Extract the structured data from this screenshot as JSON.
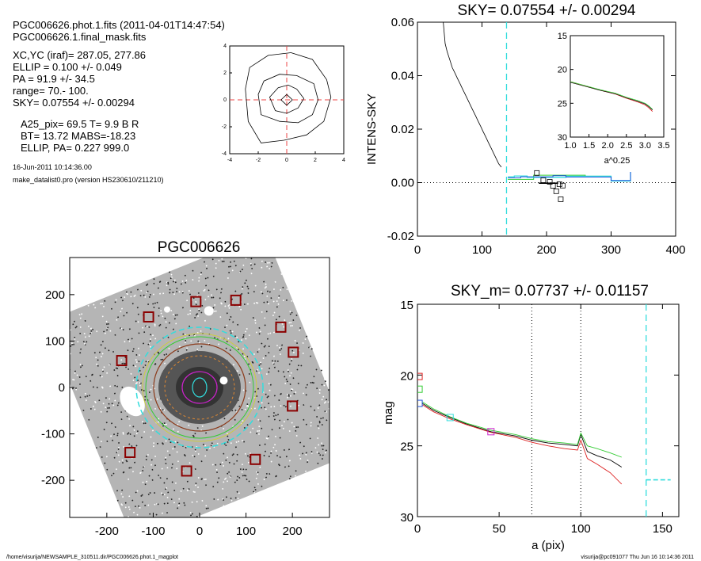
{
  "header": {
    "lines": [
      "PGC006626.phot.1.fits  (2011-04-01T14:47:54)",
      "PGC006626.1.final_mask.fits",
      "XC,YC (iraf)=   287.05, 277.86",
      "ELLIP = 0.100 +/- 0.049",
      "PA    =  91.9 +/-  34.5",
      "range=   70.-  100.",
      "SKY= 0.07554 +/- 0.00294",
      "A25_pix= 69.5   T= 9.9  B R",
      "BT=  13.72   MABS=-18.23",
      "ELLIP, PA= 0.227   999.0"
    ],
    "date": "16-Jun-2011 10:14:36.00",
    "program": "make_datalist0.pro (version HS230610/211210)"
  },
  "footer": {
    "path": "/home/visurija/NEWSAMPLE_310511.dir/PGC006626.phot.1_magplot",
    "stamp": "visurija@pc091077  Thu Jun 16 10:14:36 2011"
  },
  "colors": {
    "cyan": "#33dddd",
    "green": "#33cc33",
    "red": "#dd2222",
    "blue": "#2255dd",
    "magenta": "#cc22cc",
    "brown": "#8b3a1a",
    "yellow": "#cccc44",
    "orange": "#dd8833"
  },
  "chart_data": [
    {
      "id": "contour",
      "type": "contour",
      "title": "",
      "xlim": [
        -4,
        4
      ],
      "ylim": [
        -4,
        4
      ],
      "xticks": [
        "-4",
        "-2",
        "0",
        "2",
        "4"
      ],
      "yticks": [
        "-4",
        "-2",
        "0",
        "2",
        "4"
      ],
      "contours": [
        [
          [
            -0.4,
            0.0
          ],
          [
            0.0,
            0.4
          ],
          [
            0.4,
            0.0
          ],
          [
            0.0,
            -0.4
          ]
        ],
        [
          [
            -1.2,
            0.2
          ],
          [
            -0.6,
            0.9
          ],
          [
            0.1,
            1.1
          ],
          [
            0.7,
            0.8
          ],
          [
            1.2,
            0.1
          ],
          [
            0.8,
            -0.6
          ],
          [
            0.0,
            -1.0
          ],
          [
            -0.8,
            -0.8
          ]
        ],
        [
          [
            -2.0,
            0.4
          ],
          [
            -1.6,
            1.4
          ],
          [
            -0.5,
            1.9
          ],
          [
            0.7,
            1.8
          ],
          [
            1.9,
            1.2
          ],
          [
            2.2,
            0.0
          ],
          [
            1.8,
            -1.1
          ],
          [
            0.8,
            -1.7
          ],
          [
            -0.5,
            -1.6
          ],
          [
            -1.8,
            -1.1
          ]
        ],
        [
          [
            -2.9,
            0.8
          ],
          [
            -2.6,
            2.4
          ],
          [
            -1.3,
            3.3
          ],
          [
            0.3,
            3.5
          ],
          [
            1.8,
            3.0
          ],
          [
            2.8,
            1.5
          ],
          [
            3.1,
            0.2
          ],
          [
            2.6,
            -1.6
          ],
          [
            1.4,
            -2.6
          ],
          [
            -0.2,
            -3.0
          ],
          [
            -1.8,
            -3.2
          ],
          [
            -2.7,
            -1.6
          ]
        ]
      ]
    },
    {
      "id": "sky",
      "type": "line",
      "title": "SKY= 0.07554 +/- 0.00294",
      "xlabel": "",
      "ylabel": "INTENS-SKY",
      "xlim": [
        0,
        400
      ],
      "ylim": [
        -0.02,
        0.06
      ],
      "xticks": [
        "0",
        "100",
        "200",
        "300",
        "400"
      ],
      "yticks": [
        "0.06",
        "0.04",
        "0.02",
        "0.00",
        "-0.02"
      ],
      "profile": [
        [
          40,
          0.06
        ],
        [
          43,
          0.052
        ],
        [
          46,
          0.049
        ],
        [
          50,
          0.046
        ],
        [
          54,
          0.043
        ],
        [
          58,
          0.041
        ],
        [
          62,
          0.039
        ],
        [
          66,
          0.037
        ],
        [
          70,
          0.035
        ],
        [
          74,
          0.033
        ],
        [
          78,
          0.031
        ],
        [
          82,
          0.029
        ],
        [
          86,
          0.027
        ],
        [
          90,
          0.025
        ],
        [
          94,
          0.023
        ],
        [
          98,
          0.021
        ],
        [
          102,
          0.019
        ],
        [
          106,
          0.017
        ],
        [
          110,
          0.015
        ],
        [
          114,
          0.013
        ],
        [
          118,
          0.011
        ],
        [
          122,
          0.009
        ],
        [
          126,
          0.007
        ],
        [
          130,
          0.0058
        ]
      ],
      "sky_steps_cyan": [
        [
          140,
          0.0022
        ],
        [
          150,
          0.0022
        ],
        [
          150,
          0.0025
        ],
        [
          170,
          0.0025
        ],
        [
          170,
          0.002
        ],
        [
          230,
          0.002
        ],
        [
          230,
          0.0024
        ],
        [
          300,
          0.0024
        ],
        [
          300,
          0.0006
        ],
        [
          330,
          0.0006
        ],
        [
          330,
          0.004
        ]
      ],
      "sky_steps_blue": [
        [
          140,
          0.0018
        ],
        [
          160,
          0.0018
        ],
        [
          160,
          0.0022
        ],
        [
          210,
          0.0022
        ],
        [
          210,
          0.0026
        ],
        [
          230,
          0.0026
        ],
        [
          230,
          0.0021
        ],
        [
          300,
          0.0021
        ],
        [
          300,
          0.0008
        ],
        [
          330,
          0.0008
        ],
        [
          330,
          0.004
        ]
      ],
      "sky_steps_green": [
        [
          140,
          0.0012
        ],
        [
          180,
          0.0012
        ],
        [
          180,
          0.0028
        ],
        [
          260,
          0.0028
        ],
        [
          260,
          0.0024
        ],
        [
          300,
          0.0024
        ]
      ],
      "boxes": [
        [
          185,
          0.0036
        ],
        [
          195,
          0.0009
        ],
        [
          205,
          0.0003
        ],
        [
          210,
          -0.0012
        ],
        [
          215,
          -0.0032
        ],
        [
          220,
          -0.0006
        ],
        [
          225,
          -0.0011
        ],
        [
          222,
          -0.0062
        ]
      ],
      "zero_line": 0,
      "vline_cyan": 138,
      "inset": {
        "xlabel": "a^0.25",
        "xlim": [
          1.0,
          3.5
        ],
        "ylim": [
          15,
          30
        ],
        "xticks": [
          "1.0",
          "1.5",
          "2.0",
          "2.5",
          "3.0",
          "3.5"
        ],
        "yticks": [
          "15",
          "20",
          "25",
          "30"
        ]
      }
    },
    {
      "id": "galaxy",
      "type": "image",
      "title": "PGC006626",
      "xlim": [
        -280,
        280
      ],
      "ylim": [
        -280,
        280
      ],
      "xticks": [
        "-200",
        "-100",
        "0",
        "100",
        "200"
      ],
      "yticks": [
        "200",
        "100",
        "0",
        "-100",
        "-200"
      ],
      "star_boxes": [
        [
          -8,
          185
        ],
        [
          78,
          188
        ],
        [
          -110,
          152
        ],
        [
          175,
          130
        ],
        [
          202,
          76
        ],
        [
          -168,
          58
        ],
        [
          200,
          -40
        ],
        [
          -150,
          -140
        ],
        [
          120,
          -155
        ],
        [
          -28,
          -180
        ]
      ]
    },
    {
      "id": "mag",
      "type": "line",
      "title": "SKY_m=  0.07737 +/- 0.01157",
      "xlabel": "a (pix)",
      "ylabel": "mag",
      "xlim": [
        0,
        160
      ],
      "ylim": [
        15,
        30
      ],
      "xticks": [
        "0",
        "50",
        "100",
        "150"
      ],
      "yticks": [
        "15",
        "20",
        "25",
        "30"
      ],
      "vlines_dotted": [
        70,
        100
      ],
      "vline_cyan": 140,
      "sky_level": 27.4,
      "sky_level_x": [
        140,
        155
      ],
      "series": [
        {
          "color": "black",
          "values": [
            [
              3,
              22.0
            ],
            [
              10,
              22.5
            ],
            [
              20,
              23.0
            ],
            [
              30,
              23.45
            ],
            [
              45,
              24.0
            ],
            [
              60,
              24.3
            ],
            [
              70,
              24.6
            ],
            [
              80,
              24.8
            ],
            [
              90,
              24.9
            ],
            [
              98,
              25.0
            ],
            [
              100,
              24.2
            ],
            [
              104,
              25.4
            ],
            [
              110,
              25.7
            ],
            [
              118,
              26.0
            ],
            [
              125,
              26.5
            ]
          ]
        },
        {
          "color": "green",
          "values": [
            [
              3,
              21.9
            ],
            [
              10,
              22.4
            ],
            [
              20,
              22.95
            ],
            [
              30,
              23.4
            ],
            [
              45,
              23.9
            ],
            [
              60,
              24.2
            ],
            [
              70,
              24.5
            ],
            [
              80,
              24.7
            ],
            [
              90,
              24.8
            ],
            [
              98,
              24.9
            ],
            [
              100,
              24.1
            ],
            [
              104,
              25.0
            ],
            [
              110,
              25.2
            ],
            [
              118,
              25.5
            ],
            [
              125,
              25.8
            ]
          ]
        },
        {
          "color": "red",
          "values": [
            [
              3,
              22.1
            ],
            [
              10,
              22.6
            ],
            [
              20,
              23.1
            ],
            [
              30,
              23.5
            ],
            [
              45,
              24.05
            ],
            [
              60,
              24.4
            ],
            [
              70,
              24.75
            ],
            [
              80,
              25.0
            ],
            [
              90,
              25.2
            ],
            [
              98,
              25.3
            ],
            [
              100,
              24.6
            ],
            [
              104,
              25.9
            ],
            [
              110,
              26.3
            ],
            [
              118,
              26.9
            ],
            [
              125,
              27.7
            ]
          ]
        }
      ],
      "markers": [
        {
          "color": "red",
          "x": 1,
          "y": 20.1
        },
        {
          "color": "green",
          "x": 1,
          "y": 21.0
        },
        {
          "color": "blue",
          "x": 1,
          "y": 22.0
        },
        {
          "color": "cyan",
          "x": 20,
          "y": 23.0
        },
        {
          "color": "magenta",
          "x": 45,
          "y": 24.0
        }
      ]
    }
  ]
}
